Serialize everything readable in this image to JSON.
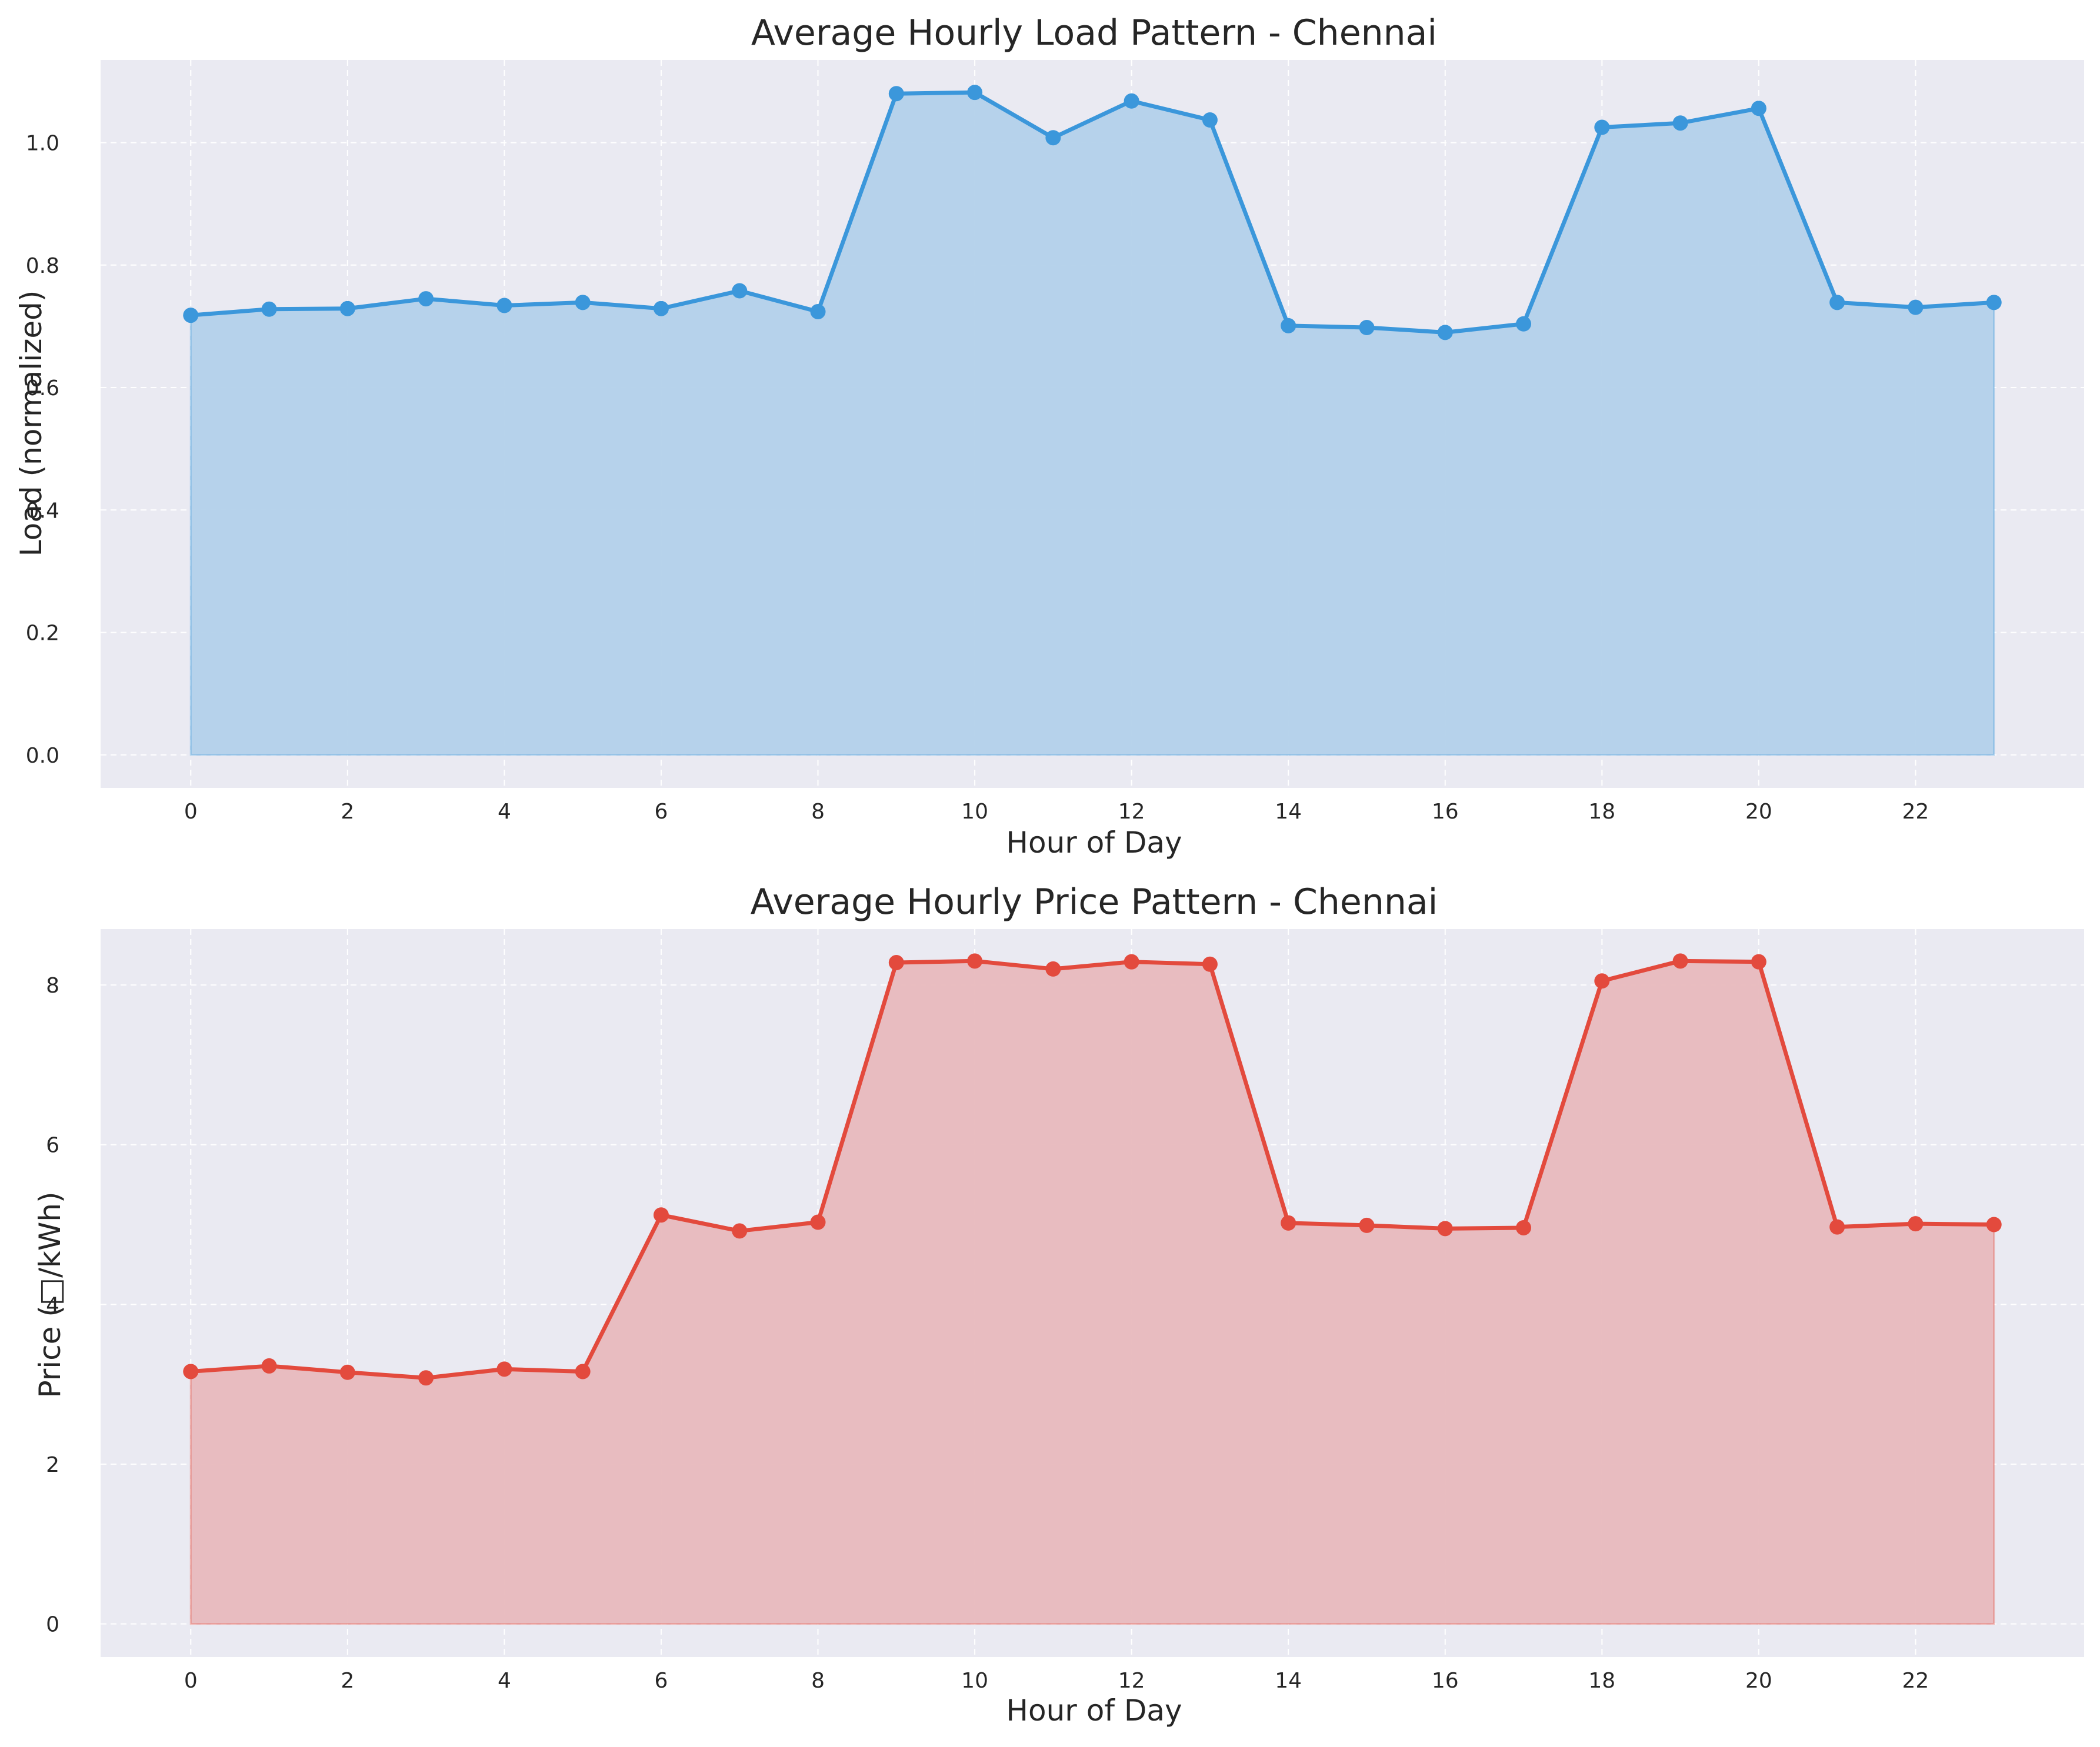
{
  "chart_data": [
    {
      "type": "area",
      "title": "Average Hourly Load Pattern - Chennai",
      "xlabel": "Hour of Day",
      "ylabel": "Load (normalized)",
      "x": [
        0,
        1,
        2,
        3,
        4,
        5,
        6,
        7,
        8,
        9,
        10,
        11,
        12,
        13,
        14,
        15,
        16,
        17,
        18,
        19,
        20,
        21,
        22,
        23
      ],
      "series": [
        {
          "values": [
            0.718,
            0.728,
            0.729,
            0.745,
            0.734,
            0.739,
            0.729,
            0.758,
            0.724,
            1.08,
            1.082,
            1.008,
            1.068,
            1.037,
            0.701,
            0.698,
            0.69,
            0.704,
            1.025,
            1.032,
            1.056,
            0.739,
            0.731,
            0.739
          ]
        }
      ],
      "xticks": [
        0,
        2,
        4,
        6,
        8,
        10,
        12,
        14,
        16,
        18,
        20,
        22
      ],
      "yticks": [
        0.0,
        0.2,
        0.4,
        0.6,
        0.8,
        1.0
      ],
      "ytick_labels": [
        "0.0",
        "0.2",
        "0.4",
        "0.6",
        "0.8",
        "1.0"
      ],
      "xlim": [
        -1.15,
        24.15
      ],
      "ylim": [
        -0.054,
        1.135
      ],
      "grid": true,
      "colors": {
        "line": "#3b97db",
        "fill": "#b3d1ea",
        "background": "#eaeaf2"
      }
    },
    {
      "type": "area",
      "title": "Average Hourly Price Pattern - Chennai",
      "xlabel": "Hour of Day",
      "ylabel": "Price (□/kWh)",
      "x": [
        0,
        1,
        2,
        3,
        4,
        5,
        6,
        7,
        8,
        9,
        10,
        11,
        12,
        13,
        14,
        15,
        16,
        17,
        18,
        19,
        20,
        21,
        22,
        23
      ],
      "series": [
        {
          "values": [
            3.16,
            3.23,
            3.15,
            3.08,
            3.19,
            3.16,
            5.12,
            4.92,
            5.03,
            8.28,
            8.3,
            8.2,
            8.29,
            8.26,
            5.02,
            4.99,
            4.95,
            4.96,
            8.05,
            8.3,
            8.29,
            4.97,
            5.01,
            5.0
          ]
        }
      ],
      "xticks": [
        0,
        2,
        4,
        6,
        8,
        10,
        12,
        14,
        16,
        18,
        20,
        22
      ],
      "yticks": [
        0,
        2,
        4,
        6,
        8
      ],
      "ytick_labels": [
        "0",
        "2",
        "4",
        "6",
        "8"
      ],
      "xlim": [
        -1.15,
        24.15
      ],
      "ylim": [
        -0.415,
        8.7
      ],
      "grid": true,
      "colors": {
        "line": "#e34a3d",
        "fill": "#e8b9bd",
        "background": "#eaeaf2"
      }
    }
  ]
}
